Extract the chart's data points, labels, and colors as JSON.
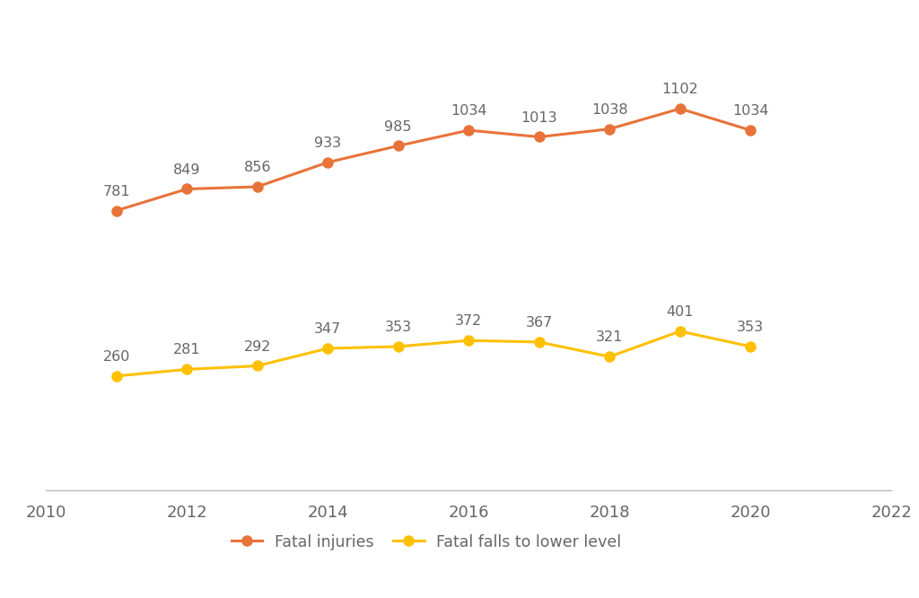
{
  "years": [
    2011,
    2012,
    2013,
    2014,
    2015,
    2016,
    2017,
    2018,
    2019,
    2020
  ],
  "fatal_injuries": [
    781,
    849,
    856,
    933,
    985,
    1034,
    1013,
    1038,
    1102,
    1034
  ],
  "fatal_falls": [
    260,
    281,
    292,
    347,
    353,
    372,
    367,
    321,
    401,
    353
  ],
  "fatal_injuries_color": "#E8733A",
  "fatal_falls_color": "#FFC000",
  "marker_style": "o",
  "marker_size": 8,
  "line_width": 2.2,
  "legend_fatal_injuries": "Fatal injuries",
  "legend_fatal_falls": "Fatal falls to lower level",
  "xlim": [
    2010,
    2022
  ],
  "ylim": [
    -100,
    1350
  ],
  "background_color": "#ffffff",
  "annotation_fontsize": 11.5,
  "label_color": "#666666",
  "axis_label_fontsize": 13,
  "legend_fontsize": 12.5
}
